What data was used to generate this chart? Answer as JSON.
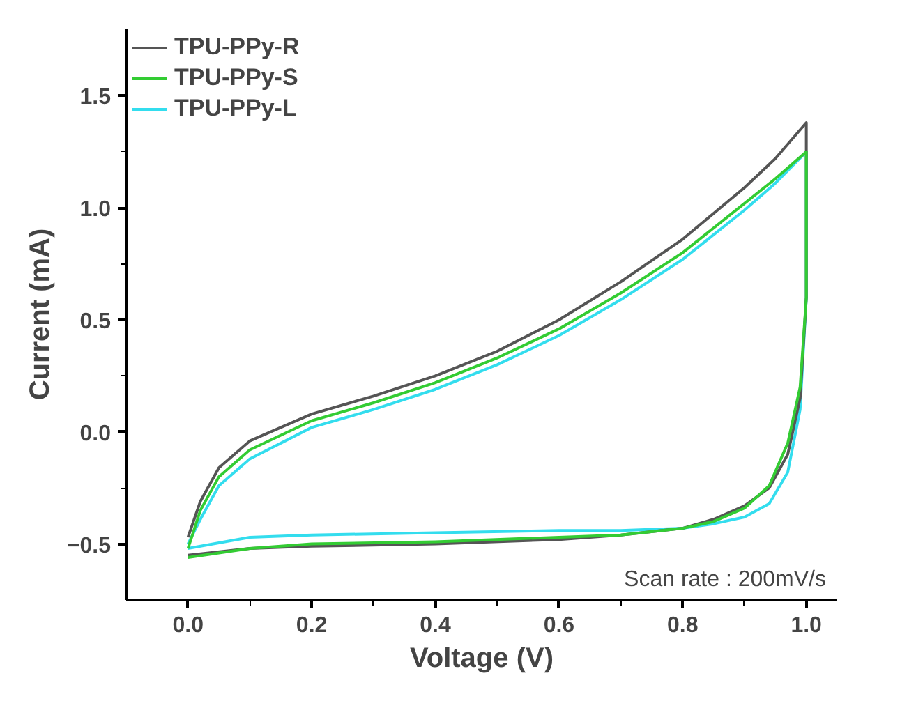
{
  "chart_data": {
    "type": "line",
    "xlabel": "Voltage (V)",
    "ylabel": "Current (mA)",
    "xlim": [
      -0.1,
      1.05
    ],
    "ylim": [
      -0.75,
      1.8
    ],
    "xticks": [
      {
        "value": 0,
        "label": "0.0"
      },
      0.2,
      0.4,
      0.6,
      0.8,
      {
        "value": 1,
        "label": "1.0"
      }
    ],
    "yticks": [
      -0.5,
      {
        "value": 0,
        "label": "0.0"
      },
      0.5,
      {
        "value": 1,
        "label": "1.0"
      },
      1.5
    ],
    "grid": false,
    "legend": "top left",
    "marker": "none",
    "line_style": "solid",
    "annotations": [
      "Scan rate : 200mV/s"
    ],
    "series": [
      {
        "name": "TPU-PPy-R",
        "color": "#555555",
        "x": [
          0,
          0.02,
          0.05,
          0.1,
          0.2,
          0.3,
          0.4,
          0.5,
          0.6,
          0.7,
          0.8,
          0.9,
          0.95,
          1.0,
          1.0,
          0.99,
          0.97,
          0.94,
          0.9,
          0.85,
          0.8,
          0.7,
          0.6,
          0.4,
          0.2,
          0.1,
          0.0
        ],
        "values": [
          -0.47,
          -0.31,
          -0.16,
          -0.04,
          0.08,
          0.16,
          0.25,
          0.36,
          0.5,
          0.67,
          0.86,
          1.09,
          1.22,
          1.38,
          0.6,
          0.15,
          -0.1,
          -0.25,
          -0.33,
          -0.39,
          -0.43,
          -0.46,
          -0.48,
          -0.5,
          -0.51,
          -0.52,
          -0.55
        ]
      },
      {
        "name": "TPU-PPy-S",
        "color": "#33cc33",
        "x": [
          0,
          0.02,
          0.05,
          0.1,
          0.2,
          0.3,
          0.4,
          0.5,
          0.6,
          0.7,
          0.8,
          0.9,
          0.95,
          1.0,
          1.0,
          0.99,
          0.97,
          0.94,
          0.9,
          0.85,
          0.8,
          0.7,
          0.6,
          0.4,
          0.2,
          0.1,
          0.0
        ],
        "values": [
          -0.52,
          -0.35,
          -0.2,
          -0.08,
          0.05,
          0.13,
          0.22,
          0.33,
          0.46,
          0.62,
          0.8,
          1.02,
          1.13,
          1.25,
          0.6,
          0.2,
          -0.05,
          -0.24,
          -0.34,
          -0.4,
          -0.43,
          -0.46,
          -0.47,
          -0.49,
          -0.5,
          -0.52,
          -0.56
        ]
      },
      {
        "name": "TPU-PPy-L",
        "color": "#33ddee",
        "x": [
          0,
          0.02,
          0.05,
          0.1,
          0.2,
          0.3,
          0.4,
          0.5,
          0.6,
          0.7,
          0.8,
          0.9,
          0.95,
          1.0,
          1.0,
          0.99,
          0.97,
          0.94,
          0.9,
          0.85,
          0.8,
          0.7,
          0.6,
          0.4,
          0.2,
          0.1,
          0.0
        ],
        "values": [
          -0.5,
          -0.39,
          -0.24,
          -0.12,
          0.02,
          0.1,
          0.19,
          0.3,
          0.43,
          0.59,
          0.77,
          0.99,
          1.11,
          1.25,
          0.6,
          0.1,
          -0.18,
          -0.32,
          -0.38,
          -0.41,
          -0.43,
          -0.44,
          -0.44,
          -0.45,
          -0.46,
          -0.47,
          -0.52
        ]
      }
    ]
  }
}
